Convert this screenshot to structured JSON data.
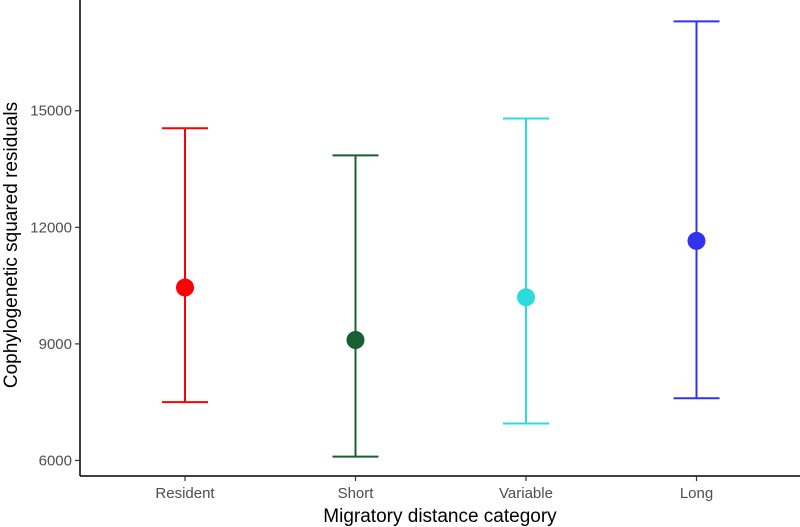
{
  "chart_data": {
    "type": "scatter",
    "subtype": "point-with-error-bars",
    "xlabel": "Migratory distance category",
    "ylabel": "Cophylogenetic squared residuals",
    "categories": [
      "Resident",
      "Short",
      "Variable",
      "Long"
    ],
    "values": [
      10450,
      9100,
      10200,
      11650
    ],
    "lower": [
      7500,
      6100,
      6950,
      7600
    ],
    "upper": [
      14550,
      13850,
      14800,
      17300
    ],
    "colors": [
      "#ff0000",
      "#1a5e34",
      "#2ddbdb",
      "#3333ee"
    ],
    "ylim": [
      5600,
      17850
    ],
    "yticks": [
      6000,
      9000,
      12000,
      15000
    ],
    "ytick_labels": [
      "6000",
      "9000",
      "12000",
      "15000"
    ],
    "grid": false,
    "legend": "none"
  }
}
